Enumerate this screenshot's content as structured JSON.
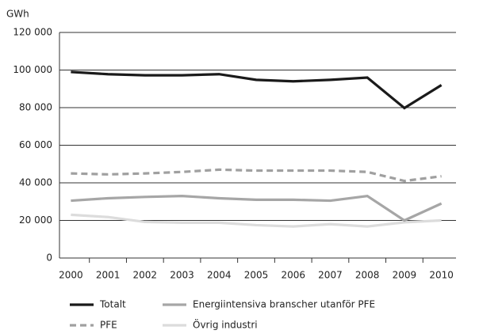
{
  "chart_data": {
    "type": "line",
    "y_label": "GWh",
    "categories": [
      "2000",
      "2001",
      "2002",
      "2003",
      "2004",
      "2005",
      "2006",
      "2007",
      "2008",
      "2009",
      "2010"
    ],
    "series": [
      {
        "name": "Totalt",
        "color": "#1a1a1a",
        "dash": false,
        "values": [
          99000,
          97800,
          97200,
          97200,
          97800,
          94800,
          94000,
          94800,
          96000,
          79800,
          92000
        ]
      },
      {
        "name": "PFE",
        "color": "#a0a0a0",
        "dash": true,
        "values": [
          45000,
          44500,
          45000,
          45800,
          47000,
          46500,
          46500,
          46500,
          45800,
          41000,
          43500
        ]
      },
      {
        "name": "Energiintensiva branscher utanför PFE",
        "color": "#a6a6a6",
        "dash": false,
        "values": [
          30500,
          31800,
          32500,
          33000,
          31800,
          31000,
          31000,
          30500,
          33000,
          20000,
          29000
        ]
      },
      {
        "name": "Övrig industri",
        "color": "#dcdcdc",
        "dash": false,
        "values": [
          23000,
          21800,
          19200,
          18800,
          18800,
          17500,
          16800,
          18000,
          16800,
          19000,
          20000
        ]
      }
    ],
    "ylim": [
      0,
      120000
    ],
    "yticks": [
      0,
      {
        "value": 20000,
        "label": "20 000"
      },
      {
        "value": 40000,
        "label": "40 000"
      },
      {
        "value": 60000,
        "label": "60 000"
      },
      {
        "value": 80000,
        "label": "80 000"
      },
      {
        "value": 100000,
        "label": "100 000"
      },
      {
        "value": 120000,
        "label": "120 000"
      }
    ],
    "grid": true
  }
}
